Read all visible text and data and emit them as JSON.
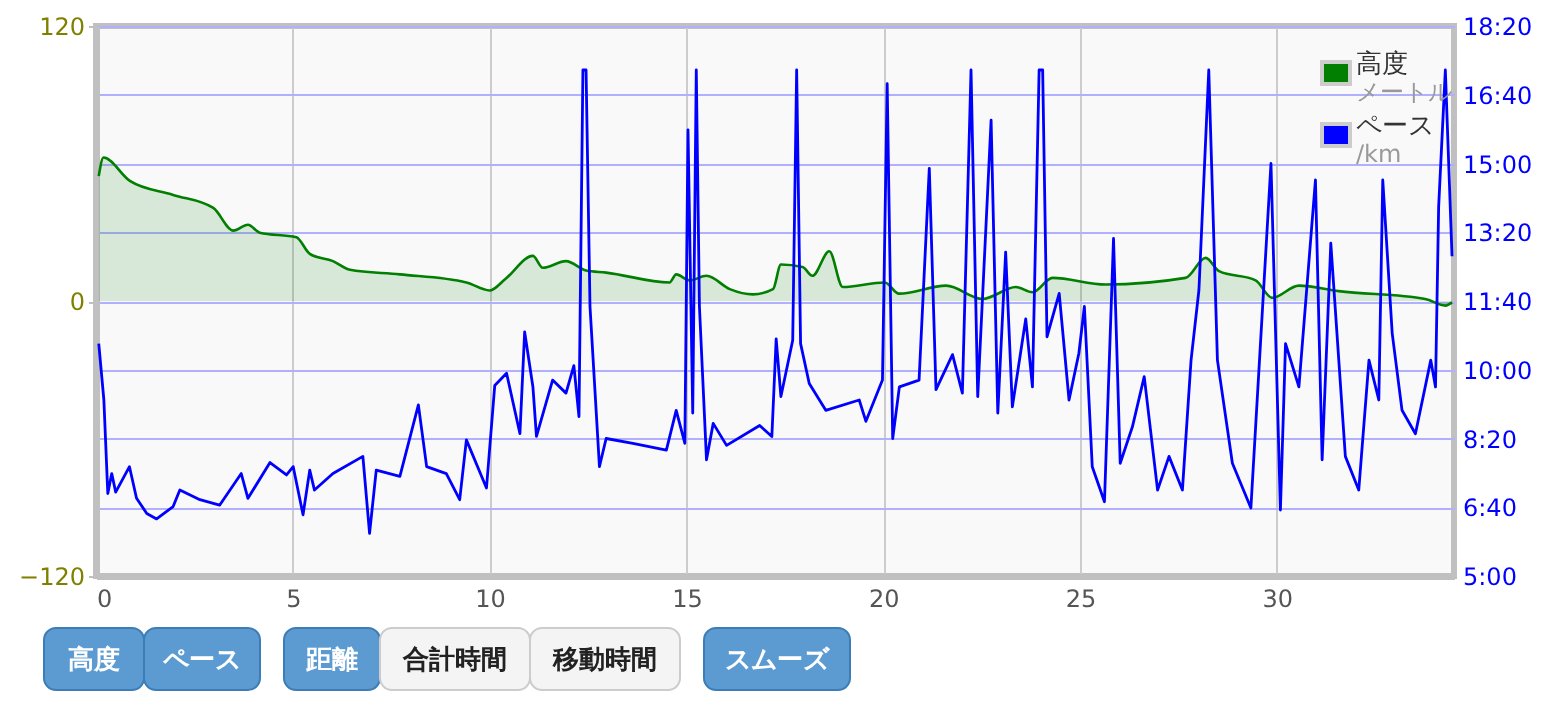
{
  "chart_data": {
    "type": "area",
    "xlim": [
      0,
      34.5
    ],
    "xticks": [
      0,
      5,
      10,
      15,
      20,
      25,
      30
    ],
    "ylim": [
      -120,
      120
    ],
    "yticks": [
      -120,
      0,
      120
    ],
    "y2lim": [
      300,
      1100
    ],
    "y2ticks": [
      {
        "value": 300,
        "label": "5:00"
      },
      {
        "value": 400,
        "label": "6:40"
      },
      {
        "value": 500,
        "label": "8:20"
      },
      {
        "value": 600,
        "label": "10:00"
      },
      {
        "value": 700,
        "label": "11:40"
      },
      {
        "value": 800,
        "label": "13:20"
      },
      {
        "value": 900,
        "label": "15:00"
      },
      {
        "value": 1000,
        "label": "16:40"
      },
      {
        "value": 1100,
        "label": "18:20"
      }
    ],
    "grid": true,
    "legend": "top right",
    "series": [
      {
        "name": "高度",
        "color": "#007f00",
        "x": [
          0.07,
          0.19,
          0.86,
          1.96,
          2.98,
          3.49,
          3.86,
          4.16,
          5.09,
          5.43,
          6.02,
          6.45,
          7.72,
          9.41,
          10.0,
          10.4,
          11.1,
          11.35,
          11.94,
          12.45,
          12.96,
          14.57,
          14.74,
          15.08,
          15.51,
          16.1,
          16.69,
          17.2,
          17.4,
          17.95,
          18.2,
          18.63,
          18.97,
          20.04,
          20.4,
          21.6,
          22.52,
          23.37,
          23.79,
          24.3,
          25.65,
          27.68,
          28.19,
          28.53,
          29.46,
          29.88,
          30.56,
          31.57,
          33.77,
          34.28,
          34.45
        ],
        "values": [
          54.5,
          62.6,
          52.4,
          46.3,
          40.6,
          30.7,
          33.3,
          29.8,
          27.8,
          20.6,
          17.4,
          13.6,
          11.6,
          8.1,
          4.6,
          9.6,
          19.7,
          14.5,
          17.4,
          13.3,
          12.4,
          8.1,
          11.6,
          9.0,
          11.0,
          5.2,
          2.9,
          5.2,
          15.9,
          14.8,
          11.0,
          21.7,
          6.1,
          8.1,
          3.2,
          6.7,
          0.9,
          6.1,
          3.8,
          10.1,
          7.2,
          10.1,
          18.8,
          13.0,
          9.0,
          1.4,
          6.7,
          4.3,
          0.9,
          -2,
          -0.6
        ]
      },
      {
        "name": "ペース",
        "type": "line",
        "axis": "y2",
        "color": "#0000ff",
        "x": [
          0.07,
          0.2,
          0.3,
          0.4,
          0.5,
          0.85,
          1.03,
          1.29,
          1.54,
          1.96,
          2.13,
          2.64,
          3.14,
          3.69,
          3.86,
          4.42,
          4.84,
          5.01,
          5.26,
          5.43,
          5.55,
          6.02,
          6.78,
          6.95,
          7.12,
          7.72,
          8.19,
          8.4,
          8.9,
          9.24,
          9.41,
          9.92,
          10.13,
          10.43,
          10.77,
          10.89,
          11.1,
          11.19,
          11.6,
          11.94,
          12.14,
          12.27,
          12.37,
          12.45,
          12.55,
          12.79,
          12.96,
          13.64,
          14.49,
          14.74,
          14.96,
          15.04,
          15.16,
          15.25,
          15.33,
          15.51,
          15.68,
          16.02,
          16.86,
          17.17,
          17.28,
          17.4,
          17.7,
          17.8,
          17.9,
          18.12,
          18.54,
          19.39,
          19.56,
          19.98,
          20.1,
          20.24,
          20.41,
          20.91,
          21.17,
          21.34,
          21.76,
          22.01,
          22.23,
          22.4,
          22.74,
          22.91,
          23.11,
          23.28,
          23.62,
          23.79,
          23.96,
          24.05,
          24.16,
          24.47,
          24.72,
          24.97,
          25.11,
          25.31,
          25.62,
          25.85,
          26.02,
          26.33,
          26.63,
          26.97,
          27.26,
          27.6,
          27.82,
          28.02,
          28.27,
          28.49,
          28.87,
          29.34,
          29.85,
          30.09,
          30.22,
          30.56,
          30.98,
          31.15,
          31.37,
          31.74,
          32.08,
          32.34,
          32.59,
          32.69,
          32.93,
          33.18,
          33.52,
          33.91,
          34.03,
          34.11,
          34.28,
          34.45
        ],
        "values": [
          638,
          556,
          420,
          449,
          422,
          459,
          413,
          391,
          383,
          401,
          425,
          411,
          403,
          449,
          413,
          465,
          447,
          459,
          389,
          454,
          425,
          449,
          474,
          362,
          454,
          445,
          549,
          459,
          449,
          411,
          498,
          428,
          577,
          595,
          507,
          655,
          575,
          503,
          585,
          566,
          606,
          532,
          1036,
          1036,
          692,
          459,
          500,
          493,
          483,
          541,
          493,
          949,
          537,
          1036,
          692,
          469,
          522,
          490,
          519,
          503,
          645,
          561,
          643,
          1036,
          638,
          580,
          541,
          556,
          525,
          585,
          1016,
          500,
          575,
          585,
          893,
          571,
          622,
          566,
          1036,
          561,
          963,
          537,
          771,
          546,
          674,
          575,
          1036,
          1036,
          648,
          711,
          556,
          624,
          692,
          459,
          408,
          791,
          464,
          517,
          590,
          425,
          474,
          425,
          614,
          716,
          1036,
          614,
          464,
          399,
          900,
          396,
          638,
          575,
          876,
          469,
          784,
          474,
          425,
          614,
          556,
          876,
          653,
          541,
          507,
          614,
          575,
          837,
          1036,
          765
        ]
      }
    ],
    "annotations": [
      "メートル",
      "/km",
      "高度",
      "ペース",
      "距離",
      "合計時間",
      "移動時間",
      "スムーズ"
    ]
  }
}
